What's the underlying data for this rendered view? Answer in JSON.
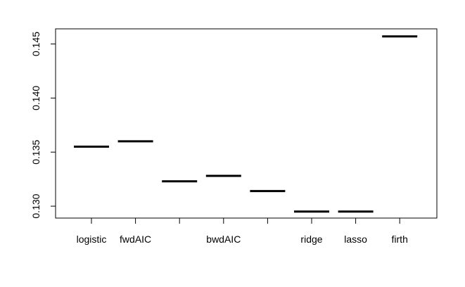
{
  "chart_data": {
    "type": "bar",
    "title": "",
    "xlabel": "",
    "ylabel": "",
    "categories": [
      "logistic",
      "fwdAIC",
      "",
      "bwdAIC",
      "",
      "ridge",
      "lasso",
      "firth"
    ],
    "values": [
      0.1355,
      0.136,
      0.1323,
      0.1328,
      0.1314,
      0.1295,
      0.1295,
      0.1457
    ],
    "ylim": [
      0.1289,
      0.1464
    ],
    "yticks": [
      0.13,
      0.135,
      0.14,
      0.145
    ],
    "ytick_labels": [
      "0.130",
      "0.135",
      "0.140",
      "0.145"
    ],
    "grid": false,
    "legend": "none",
    "mark": "horizontal segment per category"
  }
}
